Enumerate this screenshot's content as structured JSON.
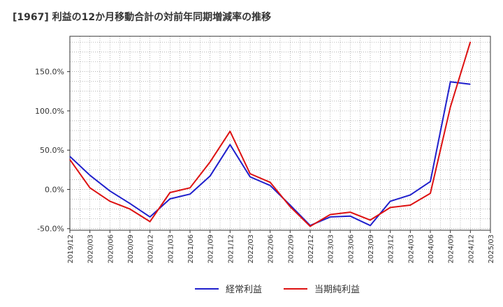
{
  "chart_data": {
    "type": "line",
    "title": "[1967]  利益の12か月移動合計の対前年同期増減率の推移",
    "xlabel": "",
    "ylabel": "",
    "x": [
      "2019/12",
      "2020/03",
      "2020/06",
      "2020/09",
      "2020/12",
      "2021/03",
      "2021/06",
      "2021/09",
      "2021/12",
      "2022/03",
      "2022/06",
      "2022/09",
      "2022/12",
      "2023/03",
      "2023/06",
      "2023/09",
      "2023/12",
      "2024/03",
      "2024/06",
      "2024/09",
      "2024/12",
      "2025/03"
    ],
    "ylim": [
      -52,
      195
    ],
    "yticks": [
      -50,
      0,
      50,
      100,
      150
    ],
    "ytick_labels": [
      "-50.0%",
      "0.0%",
      "50.0%",
      "100.0%",
      "150.0%"
    ],
    "grid": true,
    "series": [
      {
        "name": "経常利益",
        "color": "#1f1fcc",
        "values": [
          42,
          18,
          -2,
          -18,
          -35,
          -12,
          -6,
          17,
          57,
          16,
          5,
          -20,
          -46,
          -35,
          -34,
          -46,
          -15,
          -7,
          10,
          137,
          134,
          null
        ]
      },
      {
        "name": "当期純利益",
        "color": "#dd1111",
        "values": [
          38,
          2,
          -15,
          -25,
          -41,
          -4,
          2,
          35,
          74,
          20,
          9,
          -22,
          -47,
          -32,
          -29,
          -39,
          -23,
          -20,
          -5,
          105,
          188,
          null
        ]
      }
    ]
  }
}
